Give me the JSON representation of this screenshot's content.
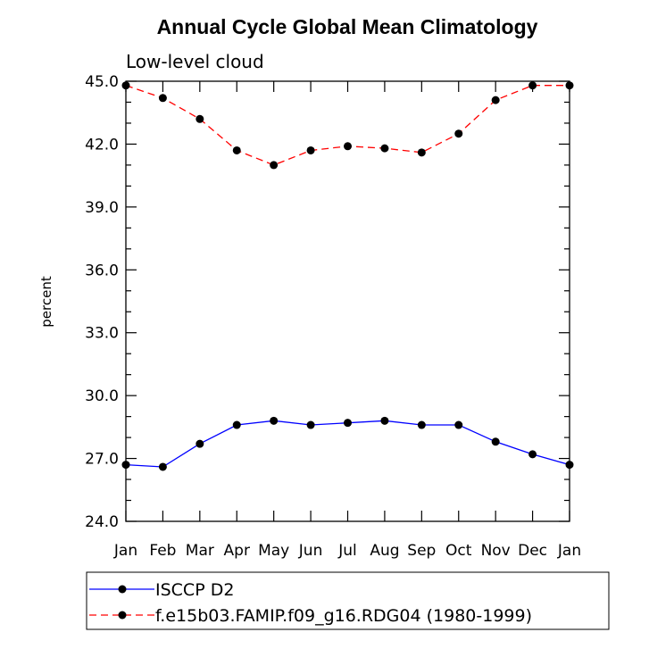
{
  "chart_data": {
    "type": "line",
    "title": "Annual Cycle Global Mean Climatology",
    "subtitle": "Low-level cloud",
    "ylabel": "percent",
    "xlabel": "",
    "categories": [
      "Jan",
      "Feb",
      "Mar",
      "Apr",
      "May",
      "Jun",
      "Jul",
      "Aug",
      "Sep",
      "Oct",
      "Nov",
      "Dec",
      "Jan"
    ],
    "ylim": [
      24.0,
      45.0
    ],
    "yticks": [
      "24.0",
      "27.0",
      "30.0",
      "33.0",
      "36.0",
      "39.0",
      "42.0",
      "45.0"
    ],
    "ytick_values": [
      24.0,
      27.0,
      30.0,
      33.0,
      36.0,
      39.0,
      42.0,
      45.0
    ],
    "y_minor_step": 1.0,
    "grid": false,
    "legend_position": "bottom",
    "series": [
      {
        "name": "ISCCP D2",
        "color": "#0000ff",
        "line_style": "solid",
        "marker": "filled-circle",
        "values": [
          26.7,
          26.6,
          27.7,
          28.6,
          28.8,
          28.6,
          28.7,
          28.8,
          28.6,
          28.6,
          27.8,
          27.2,
          26.7
        ]
      },
      {
        "name": "f.e15b03.FAMIP.f09_g16.RDG04 (1980-1999)",
        "color": "#ff0000",
        "line_style": "dashed",
        "marker": "filled-circle",
        "values": [
          44.8,
          44.2,
          43.2,
          41.7,
          41.0,
          41.7,
          41.9,
          41.8,
          41.6,
          42.5,
          44.1,
          44.8,
          44.8
        ]
      }
    ]
  }
}
